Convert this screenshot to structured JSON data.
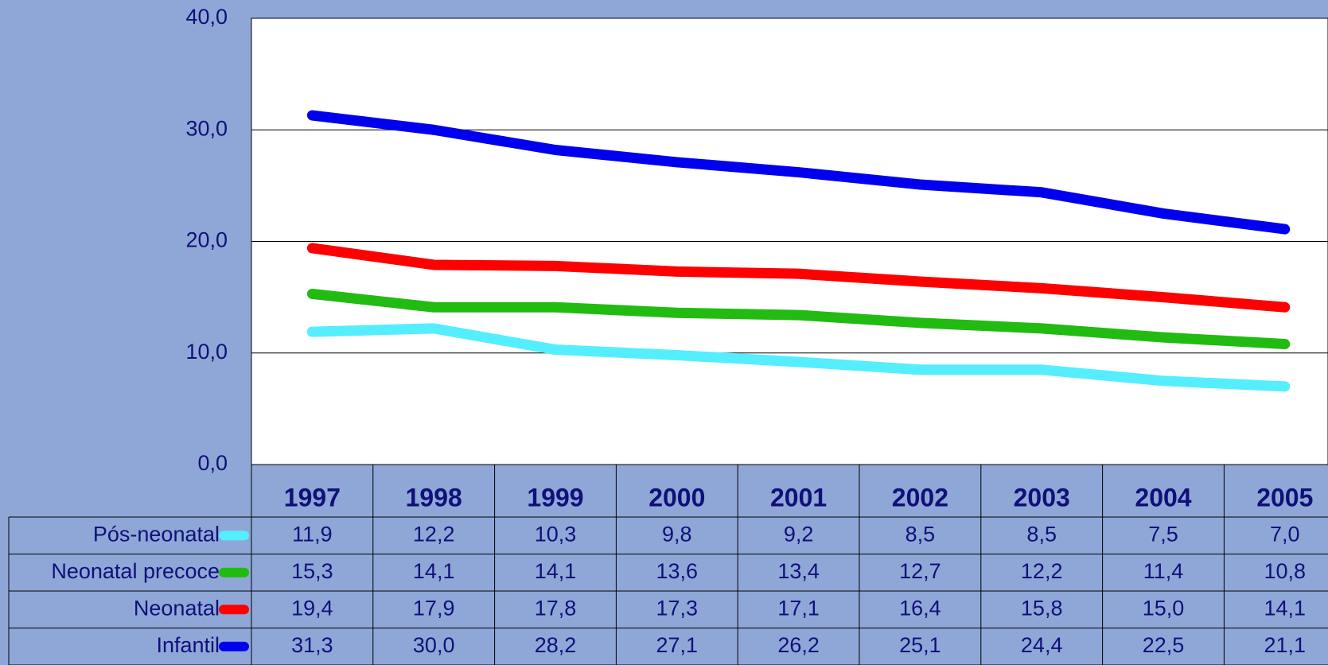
{
  "chart_data": {
    "type": "line",
    "categories": [
      "1997",
      "1998",
      "1999",
      "2000",
      "2001",
      "2002",
      "2003",
      "2004",
      "2005"
    ],
    "series": [
      {
        "name": "Pós-neonatal",
        "color": "#55eeff",
        "values": [
          11.9,
          12.2,
          10.3,
          9.8,
          9.2,
          8.5,
          8.5,
          7.5,
          7.0
        ],
        "value_labels": [
          "11,9",
          "12,2",
          "10,3",
          "9,8",
          "9,2",
          "8,5",
          "8,5",
          "7,5",
          "7,0"
        ]
      },
      {
        "name": "Neonatal precoce",
        "color": "#22bb11",
        "values": [
          15.3,
          14.1,
          14.1,
          13.6,
          13.4,
          12.7,
          12.2,
          11.4,
          10.8
        ],
        "value_labels": [
          "15,3",
          "14,1",
          "14,1",
          "13,6",
          "13,4",
          "12,7",
          "12,2",
          "11,4",
          "10,8"
        ]
      },
      {
        "name": "Neonatal",
        "color": "#ff0000",
        "values": [
          19.4,
          17.9,
          17.8,
          17.3,
          17.1,
          16.4,
          15.8,
          15.0,
          14.1
        ],
        "value_labels": [
          "19,4",
          "17,9",
          "17,8",
          "17,3",
          "17,1",
          "16,4",
          "15,8",
          "15,0",
          "14,1"
        ]
      },
      {
        "name": "Infantil",
        "color": "#0000ee",
        "values": [
          31.3,
          30.0,
          28.2,
          27.1,
          26.2,
          25.1,
          24.4,
          22.5,
          21.1
        ],
        "value_labels": [
          "31,3",
          "30,0",
          "28,2",
          "27,1",
          "26,2",
          "25,1",
          "24,4",
          "22,5",
          "21,1"
        ]
      }
    ],
    "ylim": [
      0,
      40
    ],
    "yticks": [
      {
        "value": 0,
        "label": "0,0"
      },
      {
        "value": 10,
        "label": "10,0"
      },
      {
        "value": 20,
        "label": "20,0"
      },
      {
        "value": 30,
        "label": "30,0"
      },
      {
        "value": 40,
        "label": "40,0"
      }
    ],
    "grid": true
  }
}
